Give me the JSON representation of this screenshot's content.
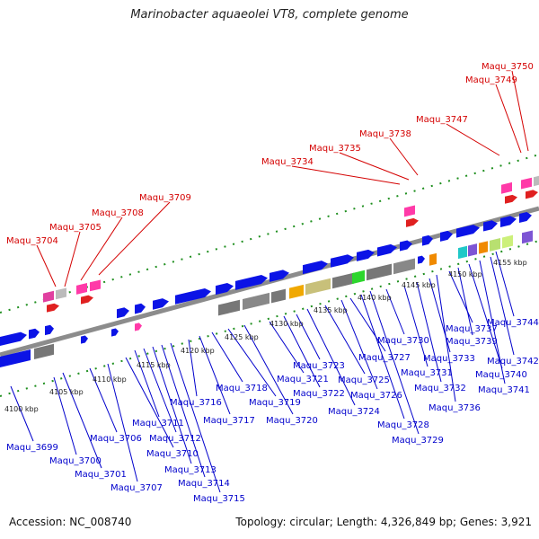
{
  "title": "Marinobacter aquaeolei VT8, complete genome",
  "accession_label": "Accession: NC_008740",
  "topology_label": "Topology: circular; Length: 4,326,849 bp; Genes: 3,921",
  "colors": {
    "backbone": "#8c8c8c",
    "forward_gene": "#0b13e6",
    "dotted_track": "#1f8f1f",
    "top_label": "#d40000",
    "bottom_label": "#0000cc",
    "tick_label": "#222222"
  },
  "kbp_ticks": [
    "4100 kbp",
    "4105 kbp",
    "4110 kbp",
    "4115 kbp",
    "4120 kbp",
    "4125 kbp",
    "4130 kbp",
    "4135 kbp",
    "4140 kbp",
    "4145 kbp",
    "4150 kbp",
    "4155 kbp"
  ],
  "top_labels": [
    "Maqu_3704",
    "Maqu_3705",
    "Maqu_3708",
    "Maqu_3709",
    "Maqu_3734",
    "Maqu_3735",
    "Maqu_3738",
    "Maqu_3747",
    "Maqu_3749",
    "Maqu_3750"
  ],
  "bottom_labels": [
    "Maqu_3699",
    "Maqu_3700",
    "Maqu_3701",
    "Maqu_3706",
    "Maqu_3707",
    "Maqu_3710",
    "Maqu_3711",
    "Maqu_3712",
    "Maqu_3713",
    "Maqu_3714",
    "Maqu_3715",
    "Maqu_3716",
    "Maqu_3717",
    "Maqu_3718",
    "Maqu_3719",
    "Maqu_3720",
    "Maqu_3721",
    "Maqu_3722",
    "Maqu_3723",
    "Maqu_3724",
    "Maqu_3725",
    "Maqu_3726",
    "Maqu_3727",
    "Maqu_3728",
    "Maqu_3729",
    "Maqu_3730",
    "Maqu_3731",
    "Maqu_3732",
    "Maqu_3733",
    "Maqu_3736",
    "Maqu_3737",
    "Maqu_3739",
    "Maqu_3740",
    "Maqu_3741",
    "Maqu_3742",
    "Maqu_3744"
  ]
}
